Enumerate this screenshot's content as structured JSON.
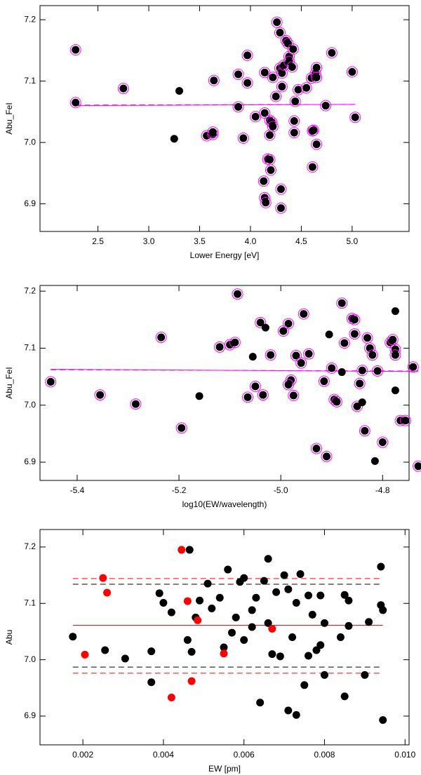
{
  "chart_data": [
    {
      "type": "scatter",
      "xlabel": "Lower Energy [eV]",
      "ylabel": "Abu_FeI",
      "xlim": [
        1.93,
        5.56
      ],
      "ylim": [
        6.855,
        7.223
      ],
      "xticks": [
        2.5,
        {
          "value": 3.0,
          "label": "3.0"
        },
        3.5,
        {
          "value": 4.0,
          "label": "4.0"
        },
        4.5,
        {
          "value": 5.0,
          "label": "5.0"
        }
      ],
      "yticks": [
        6.9,
        {
          "value": 7.0,
          "label": "7.0"
        },
        7.1,
        7.2
      ],
      "series": [
        {
          "color": "#000000",
          "ring": "#ff00ff",
          "x": [
            2.28,
            2.28,
            2.75,
            3.57,
            3.63,
            3.63,
            3.64,
            3.88,
            3.88,
            3.93,
            3.97,
            3.97,
            4.05,
            4.14,
            4.14,
            4.13,
            4.14,
            4.15,
            4.17,
            4.19,
            4.19,
            4.19,
            4.2,
            4.21,
            4.22,
            4.22,
            4.25,
            4.26,
            4.29,
            4.29,
            4.3,
            4.3,
            4.31,
            4.31,
            4.33,
            4.35,
            4.37,
            4.38,
            4.38,
            4.41,
            4.42,
            4.43,
            4.43,
            4.44,
            4.47,
            4.55,
            4.6,
            4.61,
            4.61,
            4.62,
            4.64,
            4.65,
            4.65,
            4.65,
            4.74,
            4.8,
            5.0,
            5.03
          ],
          "values": [
            7.151,
            7.065,
            7.088,
            7.011,
            7.013,
            7.017,
            7.101,
            7.111,
            7.058,
            7.007,
            7.142,
            7.097,
            7.042,
            7.114,
            7.048,
            6.937,
            6.91,
            6.902,
            6.973,
            6.972,
            7.036,
            7.012,
            6.955,
            7.033,
            7.106,
            7.026,
            7.075,
            7.196,
            7.179,
            7.121,
            6.924,
            6.893,
            7.091,
            7.113,
            7.126,
            7.166,
            7.161,
            7.14,
            7.132,
            7.123,
            7.152,
            7.035,
            7.016,
            7.067,
            7.086,
            7.089,
            7.105,
            7.019,
            6.96,
            7.02,
            7.113,
            7.122,
            7.106,
            6.997,
            7.06,
            7.146,
            7.115,
            7.041
          ]
        },
        {
          "color": "#000000",
          "x": [
            3.25,
            3.3
          ],
          "values": [
            7.006,
            7.084
          ]
        }
      ],
      "lines": [
        {
          "color": "#ff00ff",
          "dash": false,
          "x": [
            2.28,
            5.03
          ],
          "y": [
            7.06,
            7.062
          ]
        },
        {
          "color": "#ff00ff",
          "dash": true,
          "x": [
            2.28,
            5.03
          ],
          "y": [
            7.061,
            7.062
          ]
        }
      ]
    },
    {
      "type": "scatter",
      "xlabel": "log10(EW/wavelength)",
      "ylabel": "Abu_FeI",
      "xlim": [
        -5.473,
        -4.748
      ],
      "ylim": [
        6.868,
        7.21
      ],
      "xticks": [
        -5.4,
        -5.2,
        {
          "value": -5.0,
          "label": "-5.0"
        },
        -4.8
      ],
      "yticks": [
        6.9,
        {
          "value": 7.0,
          "label": "7.0"
        },
        7.1,
        7.2
      ],
      "series": [
        {
          "color": "#000000",
          "ring": "#ff00ff",
          "x": [
            -5.452,
            -5.355,
            -5.285,
            -5.235,
            -5.195,
            -5.12,
            -5.1,
            -5.09,
            -5.085,
            -5.065,
            -5.05,
            -5.04,
            -5.035,
            -5.02,
            -4.985,
            -4.995,
            -4.975,
            -4.98,
            -4.985,
            -4.97,
            -4.955,
            -4.96,
            -4.945,
            -4.93,
            -4.915,
            -4.91,
            -4.9,
            -4.895,
            -4.89,
            -4.88,
            -4.875,
            -4.86,
            -4.855,
            -4.855,
            -4.85,
            -4.845,
            -4.84,
            -4.835,
            -4.83,
            -4.825,
            -4.82,
            -4.81,
            -4.8,
            -4.785,
            -4.78,
            -4.775,
            -4.775,
            -4.765,
            -4.755,
            -4.74,
            -4.73
          ],
          "values": [
            7.041,
            7.018,
            7.002,
            7.119,
            6.96,
            7.102,
            7.106,
            7.11,
            7.195,
            7.014,
            7.033,
            7.145,
            7.018,
            7.088,
            7.143,
            7.13,
            7.017,
            7.044,
            7.036,
            7.087,
            7.16,
            7.074,
            7.09,
            6.924,
            7.042,
            6.91,
            7.065,
            7.01,
            7.006,
            7.179,
            7.109,
            7.152,
            7.15,
            7.125,
            6.998,
            7.038,
            7.061,
            6.955,
            7.118,
            7.1,
            7.088,
            7.06,
            6.935,
            7.11,
            7.115,
            7.098,
            7.088,
            6.973,
            6.973,
            7.067,
            6.893
          ]
        },
        {
          "color": "#000000",
          "x": [
            -5.16,
            -5.055,
            -5.03,
            -4.905,
            -4.88,
            -4.84,
            -4.815,
            -4.775,
            -4.775
          ],
          "values": [
            7.016,
            7.085,
            7.136,
            7.124,
            7.058,
            7.005,
            6.902,
            7.026,
            7.165
          ]
        }
      ],
      "lines": [
        {
          "color": "#ff00ff",
          "dash": false,
          "x": [
            -5.452,
            -4.73
          ],
          "y": [
            7.063,
            7.059
          ]
        },
        {
          "color": "#ff00ff",
          "dash": true,
          "x": [
            -5.452,
            -4.73
          ],
          "y": [
            7.062,
            7.06
          ]
        }
      ]
    },
    {
      "type": "scatter",
      "xlabel": "EW [pm]",
      "ylabel": "Abu",
      "xlim": [
        0.000935,
        0.0101
      ],
      "ylim": [
        6.849,
        7.231
      ],
      "xticks": [
        0.002,
        0.004,
        0.006,
        0.008,
        {
          "value": 0.01,
          "label": "0.010"
        }
      ],
      "yticks": [
        6.9,
        {
          "value": 7.0,
          "label": "7.0"
        },
        7.1,
        7.2
      ],
      "series": [
        {
          "color": "#000000",
          "x": [
            0.00175,
            0.00255,
            0.00305,
            0.0037,
            0.0037,
            0.0039,
            0.004,
            0.0042,
            0.0046,
            0.00465,
            0.0047,
            0.0048,
            0.0049,
            0.0051,
            0.0052,
            0.0054,
            0.0055,
            0.0056,
            0.0057,
            0.0058,
            0.0059,
            0.006,
            0.006,
            0.0062,
            0.0062,
            0.0063,
            0.0064,
            0.0065,
            0.0066,
            0.0066,
            0.0067,
            0.0068,
            0.0069,
            0.007,
            0.0071,
            0.0071,
            0.0072,
            0.0073,
            0.0073,
            0.0074,
            0.0075,
            0.0076,
            0.0076,
            0.0077,
            0.0078,
            0.0079,
            0.0079,
            0.008,
            0.008,
            0.0084,
            0.0085,
            0.0085,
            0.0086,
            0.0086,
            0.009,
            0.0091,
            0.0094,
            0.0094,
            0.00945,
            0.00945
          ],
          "values": [
            7.041,
            7.017,
            7.002,
            6.96,
            7.015,
            7.118,
            7.101,
            7.084,
            7.035,
            7.195,
            7.014,
            7.075,
            7.105,
            7.135,
            7.091,
            7.11,
            7.022,
            7.16,
            7.048,
            7.075,
            7.138,
            7.145,
            7.035,
            7.058,
            7.088,
            7.11,
            6.924,
            7.14,
            7.179,
            7.065,
            7.01,
            7.12,
            7.006,
            7.15,
            7.125,
            6.91,
            7.04,
            6.902,
            7.101,
            7.152,
            6.955,
            7.007,
            7.114,
            7.08,
            7.017,
            7.114,
            7.026,
            6.973,
            7.065,
            7.04,
            7.115,
            6.935,
            7.105,
            7.06,
            6.973,
            7.067,
            7.097,
            7.165,
            6.893,
            7.088
          ]
        },
        {
          "color": "#ff0000",
          "x": [
            0.00205,
            0.0025,
            0.0026,
            0.0042,
            0.00445,
            0.0046,
            0.0047,
            0.00485,
            0.0055,
            0.0067
          ],
          "values": [
            7.009,
            7.145,
            7.119,
            6.933,
            7.195,
            7.104,
            6.962,
            7.07,
            7.011,
            7.055
          ]
        }
      ],
      "lines": [
        {
          "color": "#cc0000",
          "dash": false,
          "x": [
            0.00175,
            0.00945
          ],
          "y": [
            7.061,
            7.061
          ]
        },
        {
          "color": "#ff0000",
          "dash": true,
          "x": [
            0.00175,
            0.00945
          ],
          "y": [
            7.144,
            7.144
          ]
        },
        {
          "color": "#ff0000",
          "dash": true,
          "x": [
            0.00175,
            0.00945
          ],
          "y": [
            6.976,
            6.976
          ]
        },
        {
          "color": "#000000",
          "dash": true,
          "x": [
            0.00175,
            0.00945
          ],
          "y": [
            7.134,
            7.134
          ]
        },
        {
          "color": "#000000",
          "dash": true,
          "x": [
            0.00175,
            0.00945
          ],
          "y": [
            6.987,
            6.987
          ]
        }
      ]
    }
  ]
}
